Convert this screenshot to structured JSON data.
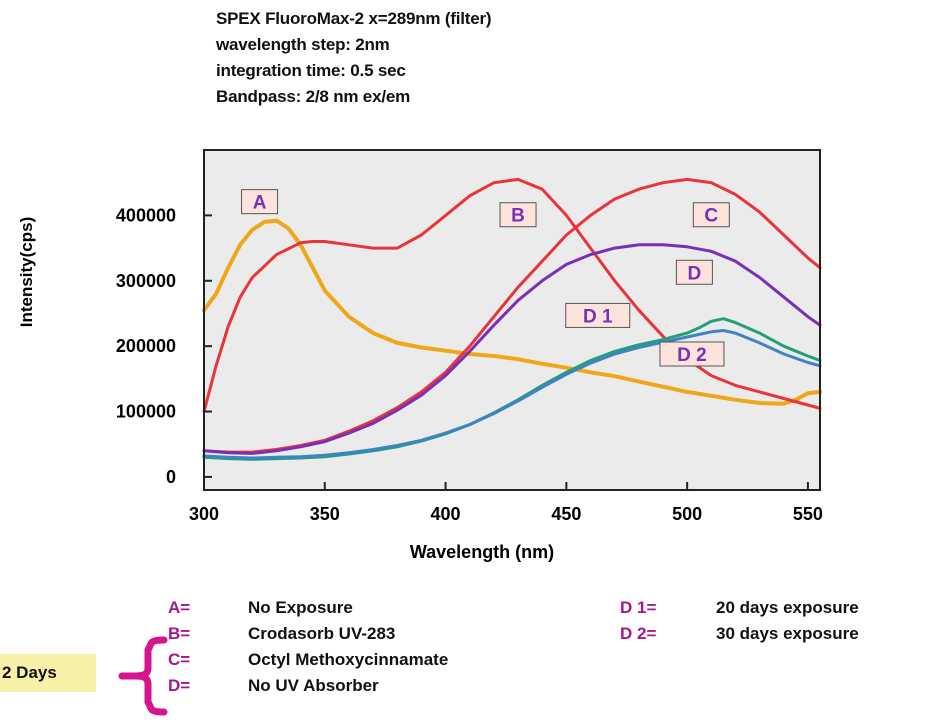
{
  "header": {
    "lines": [
      "SPEX FluoroMax-2 x=289nm (filter)",
      "wavelength step:  2nm",
      "integration time:  0.5 sec",
      "Bandpass:  2/8 nm ex/em"
    ]
  },
  "chart_data": {
    "type": "line",
    "xlabel": "Wavelength (nm)",
    "ylabel": "Intensity(cps)",
    "xlim": [
      300,
      555
    ],
    "ylim": [
      -20000,
      500000
    ],
    "xticks": [
      300,
      350,
      400,
      450,
      500,
      550
    ],
    "yticks": [
      0,
      100000,
      200000,
      300000,
      400000
    ],
    "grid": false,
    "series": [
      {
        "name": "A",
        "color": "#f0a619",
        "x": [
          300,
          305,
          310,
          315,
          320,
          325,
          330,
          335,
          340,
          345,
          350,
          360,
          370,
          380,
          390,
          400,
          410,
          420,
          430,
          440,
          450,
          460,
          470,
          480,
          490,
          500,
          510,
          520,
          530,
          540,
          545,
          550,
          555
        ],
        "y": [
          255000,
          280000,
          320000,
          355000,
          378000,
          390000,
          392000,
          380000,
          355000,
          320000,
          285000,
          245000,
          220000,
          205000,
          198000,
          193000,
          188000,
          185000,
          180000,
          173000,
          167000,
          160000,
          154000,
          146000,
          138000,
          130000,
          124000,
          118000,
          113000,
          112000,
          118000,
          128000,
          130000
        ]
      },
      {
        "name": "B",
        "color": "#e8343a",
        "x": [
          300,
          305,
          310,
          315,
          320,
          330,
          340,
          345,
          350,
          360,
          370,
          380,
          390,
          400,
          410,
          420,
          430,
          440,
          450,
          460,
          470,
          480,
          490,
          500,
          510,
          520,
          530,
          540,
          550,
          555
        ],
        "y": [
          100000,
          170000,
          230000,
          275000,
          305000,
          340000,
          358000,
          360000,
          360000,
          355000,
          350000,
          350000,
          370000,
          400000,
          430000,
          450000,
          455000,
          440000,
          400000,
          350000,
          300000,
          255000,
          215000,
          180000,
          155000,
          140000,
          130000,
          120000,
          110000,
          105000
        ]
      },
      {
        "name": "C",
        "color": "#e8343a",
        "x": [
          300,
          310,
          320,
          330,
          340,
          350,
          360,
          370,
          380,
          390,
          400,
          410,
          420,
          430,
          440,
          450,
          460,
          470,
          480,
          490,
          500,
          510,
          520,
          530,
          540,
          550,
          555
        ],
        "y": [
          40000,
          38000,
          38000,
          42000,
          48000,
          56000,
          70000,
          86000,
          106000,
          130000,
          160000,
          200000,
          245000,
          290000,
          330000,
          370000,
          400000,
          425000,
          440000,
          450000,
          455000,
          450000,
          432000,
          405000,
          370000,
          335000,
          320000
        ]
      },
      {
        "name": "D",
        "color": "#7a2fb8",
        "x": [
          300,
          310,
          320,
          330,
          340,
          350,
          360,
          370,
          380,
          390,
          400,
          410,
          420,
          430,
          440,
          450,
          460,
          470,
          480,
          490,
          500,
          510,
          520,
          530,
          540,
          550,
          555
        ],
        "y": [
          40000,
          37000,
          36000,
          40000,
          46000,
          54000,
          67000,
          82000,
          102000,
          125000,
          155000,
          192000,
          232000,
          270000,
          300000,
          325000,
          340000,
          350000,
          355000,
          355000,
          352000,
          345000,
          330000,
          305000,
          275000,
          245000,
          232000
        ]
      },
      {
        "name": "D1",
        "color": "#22a079",
        "x": [
          300,
          310,
          320,
          330,
          340,
          350,
          360,
          370,
          380,
          390,
          400,
          410,
          420,
          430,
          440,
          450,
          460,
          470,
          480,
          490,
          500,
          505,
          510,
          515,
          520,
          530,
          540,
          550,
          555
        ],
        "y": [
          30000,
          28000,
          27000,
          28000,
          29000,
          31000,
          35000,
          40000,
          46000,
          55000,
          66000,
          80000,
          98000,
          118000,
          140000,
          160000,
          178000,
          192000,
          202000,
          210000,
          220000,
          228000,
          238000,
          242000,
          236000,
          220000,
          200000,
          185000,
          178000
        ]
      },
      {
        "name": "D2",
        "color": "#3f83c4",
        "x": [
          300,
          310,
          320,
          330,
          340,
          350,
          360,
          370,
          380,
          390,
          400,
          410,
          420,
          430,
          440,
          450,
          460,
          470,
          480,
          490,
          500,
          505,
          510,
          515,
          520,
          530,
          540,
          550,
          555
        ],
        "y": [
          32000,
          30000,
          29000,
          30000,
          31000,
          33000,
          37000,
          42000,
          48000,
          56000,
          67000,
          80000,
          97000,
          116000,
          137000,
          157000,
          174000,
          188000,
          198000,
          206000,
          214000,
          218000,
          222000,
          224000,
          220000,
          205000,
          188000,
          175000,
          170000
        ]
      }
    ],
    "curve_labels": [
      {
        "text": "A",
        "x": 323,
        "y": 421000,
        "color": "#7a2fb8"
      },
      {
        "text": "B",
        "x": 430,
        "y": 401000,
        "color": "#7a2fb8"
      },
      {
        "text": "C",
        "x": 510,
        "y": 401000,
        "color": "#7a2fb8"
      },
      {
        "text": "D",
        "x": 503,
        "y": 313000,
        "color": "#7a2fb8"
      },
      {
        "text": "D 1",
        "x": 463,
        "y": 247000,
        "color": "#7a2fb8"
      },
      {
        "text": "D 2",
        "x": 502,
        "y": 188000,
        "color": "#7a2fb8"
      }
    ]
  },
  "legend": {
    "left": [
      {
        "key": "A=",
        "text": "No Exposure"
      },
      {
        "key": "B=",
        "text": "Crodasorb UV-283"
      },
      {
        "key": "C=",
        "text": "Octyl Methoxycinnamate"
      },
      {
        "key": "D=",
        "text": "No UV Absorber"
      }
    ],
    "right": [
      {
        "key": "D 1=",
        "text": "20 days exposure"
      },
      {
        "key": "D 2=",
        "text": "30 days exposure"
      }
    ],
    "group_label": "2 Days",
    "colors": {
      "key": "#a5178f",
      "brace": "#d6148c",
      "box": "#f6f1a6",
      "label_box": "#fce3dc"
    }
  }
}
